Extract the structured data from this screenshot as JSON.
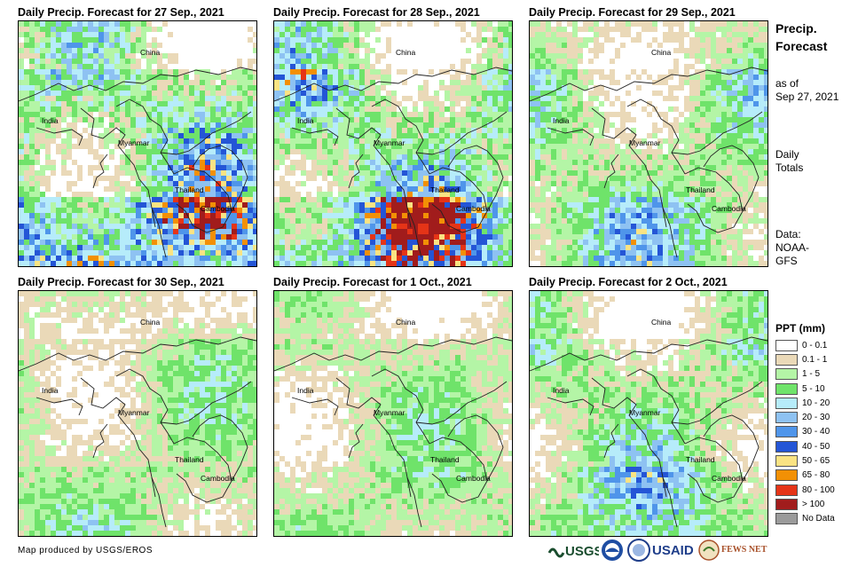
{
  "panels": [
    {
      "title": "Daily Precip. Forecast for 27 Sep., 2021",
      "labels": {
        "china": "China",
        "india": "India",
        "myanmar": "Myanmar",
        "thailand": "Thailand",
        "cambodia": "Cambodia"
      },
      "rain_level": "heavy"
    },
    {
      "title": "Daily Precip. Forecast for 28 Sep., 2021",
      "labels": {
        "china": "China",
        "india": "India",
        "myanmar": "Myanmar",
        "thailand": "Thailand",
        "cambodia": "Cambodia"
      },
      "rain_level": "heavy"
    },
    {
      "title": "Daily Precip. Forecast for 29 Sep., 2021",
      "labels": {
        "china": "China",
        "india": "India",
        "myanmar": "Myanmar",
        "thailand": "Thailand",
        "cambodia": "Cambodia"
      },
      "rain_level": "moderate"
    },
    {
      "title": "Daily Precip. Forecast for 30 Sep., 2021",
      "labels": {
        "china": "China",
        "india": "India",
        "myanmar": "Myanmar",
        "thailand": "Thailand",
        "cambodia": "Cambodia"
      },
      "rain_level": "light"
    },
    {
      "title": "Daily Precip. Forecast for 1 Oct., 2021",
      "labels": {
        "china": "China",
        "india": "India",
        "myanmar": "Myanmar",
        "thailand": "Thailand",
        "cambodia": "Cambodia"
      },
      "rain_level": "light"
    },
    {
      "title": "Daily Precip. Forecast for 2 Oct., 2021",
      "labels": {
        "china": "China",
        "india": "India",
        "myanmar": "Myanmar",
        "thailand": "Thailand",
        "cambodia": "Cambodia"
      },
      "rain_level": "moderate"
    }
  ],
  "sidebar": {
    "title_line1": "Precip.",
    "title_line2": "Forecast",
    "asof_line1": "as of",
    "asof_line2": "Sep 27, 2021",
    "totals_line1": "Daily",
    "totals_line2": "Totals",
    "data_line1": "Data:",
    "data_line2": "NOAA-",
    "data_line3": "GFS"
  },
  "legend": {
    "title": "PPT (mm)",
    "items": [
      {
        "label": "0 - 0.1",
        "color": "#ffffff"
      },
      {
        "label": "0.1 - 1",
        "color": "#ead9b8"
      },
      {
        "label": "1 - 5",
        "color": "#b4f5a6"
      },
      {
        "label": "5 - 10",
        "color": "#6fe36a"
      },
      {
        "label": "10 - 20",
        "color": "#b6ecfa"
      },
      {
        "label": "20 - 30",
        "color": "#8ec2f2"
      },
      {
        "label": "30 - 40",
        "color": "#4f95ea"
      },
      {
        "label": "40 - 50",
        "color": "#2455d6"
      },
      {
        "label": "50 - 65",
        "color": "#fae383"
      },
      {
        "label": "65 - 80",
        "color": "#f29005"
      },
      {
        "label": "80 - 100",
        "color": "#e53417"
      },
      {
        "label": "> 100",
        "color": "#a11c1c"
      },
      {
        "label": "No Data",
        "color": "#9b9b9b"
      }
    ]
  },
  "footer": {
    "credit": "Map produced by USGS/EROS"
  },
  "logos": {
    "usgs": "USGS",
    "usaid": "USAID",
    "fewsnet": "FEWS NET"
  }
}
